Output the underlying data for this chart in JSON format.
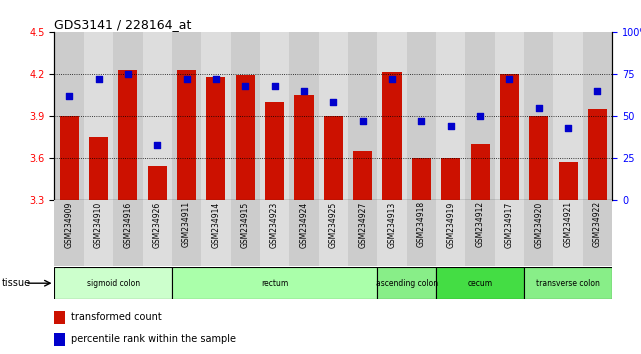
{
  "title": "GDS3141 / 228164_at",
  "samples": [
    "GSM234909",
    "GSM234910",
    "GSM234916",
    "GSM234926",
    "GSM234911",
    "GSM234914",
    "GSM234915",
    "GSM234923",
    "GSM234924",
    "GSM234925",
    "GSM234927",
    "GSM234913",
    "GSM234918",
    "GSM234919",
    "GSM234912",
    "GSM234917",
    "GSM234920",
    "GSM234921",
    "GSM234922"
  ],
  "bar_values": [
    3.9,
    3.75,
    4.23,
    3.54,
    4.23,
    4.18,
    4.19,
    4.0,
    4.05,
    3.9,
    3.65,
    4.21,
    3.6,
    3.6,
    3.7,
    4.2,
    3.9,
    3.57,
    3.95
  ],
  "dot_values": [
    62,
    72,
    75,
    33,
    72,
    72,
    68,
    68,
    65,
    58,
    47,
    72,
    47,
    44,
    50,
    72,
    55,
    43,
    65
  ],
  "ylim_left": [
    3.3,
    4.5
  ],
  "ylim_right": [
    0,
    100
  ],
  "yticks_left": [
    3.3,
    3.6,
    3.9,
    4.2,
    4.5
  ],
  "yticks_right": [
    0,
    25,
    50,
    75,
    100
  ],
  "ytick_labels_right": [
    "0",
    "25",
    "50",
    "75",
    "100%"
  ],
  "grid_values": [
    3.6,
    3.9,
    4.2
  ],
  "bar_color": "#cc1100",
  "dot_color": "#0000cc",
  "bg_color": "#ffffff",
  "tissue_groups": [
    {
      "label": "sigmoid colon",
      "start": 0,
      "end": 4,
      "color": "#ccffcc"
    },
    {
      "label": "rectum",
      "start": 4,
      "end": 11,
      "color": "#aaffaa"
    },
    {
      "label": "ascending colon",
      "start": 11,
      "end": 13,
      "color": "#88ee88"
    },
    {
      "label": "cecum",
      "start": 13,
      "end": 16,
      "color": "#44dd44"
    },
    {
      "label": "transverse colon",
      "start": 16,
      "end": 19,
      "color": "#88ee88"
    }
  ],
  "legend_items": [
    {
      "label": "transformed count",
      "color": "#cc1100"
    },
    {
      "label": "percentile rank within the sample",
      "color": "#0000cc"
    }
  ],
  "tissue_label": "tissue",
  "bar_width": 0.65,
  "col_bg_even": "#cccccc",
  "col_bg_odd": "#dddddd"
}
